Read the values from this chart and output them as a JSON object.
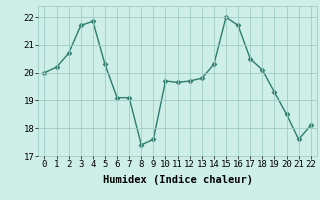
{
  "x": [
    0,
    1,
    2,
    3,
    4,
    5,
    6,
    7,
    8,
    9,
    10,
    11,
    12,
    13,
    14,
    15,
    16,
    17,
    18,
    19,
    20,
    21,
    22
  ],
  "y": [
    20.0,
    20.2,
    20.7,
    21.7,
    21.85,
    20.3,
    19.1,
    19.1,
    17.4,
    17.6,
    19.7,
    19.65,
    19.7,
    19.8,
    20.3,
    22.0,
    21.7,
    20.5,
    20.1,
    19.3,
    18.5,
    17.6,
    18.1
  ],
  "line_color": "#2d7d6e",
  "marker": "D",
  "marker_size": 2.5,
  "bg_color": "#ceeee8",
  "grid_color": "#a0ccc5",
  "xlabel": "Humidex (Indice chaleur)",
  "tick_fontsize": 6.5,
  "xlabel_fontsize": 7.5,
  "xlim": [
    -0.5,
    22.5
  ],
  "ylim": [
    17.0,
    22.4
  ],
  "yticks": [
    17,
    18,
    19,
    20,
    21,
    22
  ],
  "xticks": [
    0,
    1,
    2,
    3,
    4,
    5,
    6,
    7,
    8,
    9,
    10,
    11,
    12,
    13,
    14,
    15,
    16,
    17,
    18,
    19,
    20,
    21,
    22
  ],
  "line_width": 1.0
}
